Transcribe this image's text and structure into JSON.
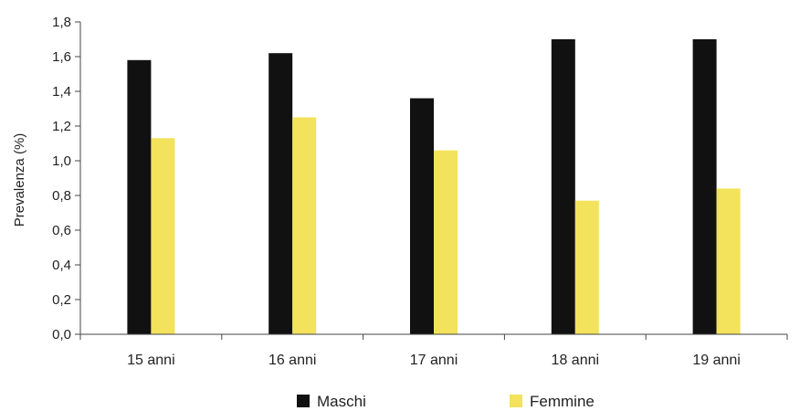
{
  "chart_data": {
    "type": "bar",
    "title": "",
    "xlabel": "",
    "ylabel": "Prevalenza (%)",
    "ylim": [
      0,
      1.8
    ],
    "yticks": [
      "0,0",
      "0,2",
      "0,4",
      "0,6",
      "0,8",
      "1,0",
      "1,2",
      "1,4",
      "1,6",
      "1,8"
    ],
    "categories": [
      "15 anni",
      "16 anni",
      "17 anni",
      "18 anni",
      "19 anni"
    ],
    "series": [
      {
        "name": "Maschi",
        "color": "#111111",
        "values": [
          1.58,
          1.62,
          1.36,
          1.7,
          1.7
        ]
      },
      {
        "name": "Femmine",
        "color": "#f3e25c",
        "values": [
          1.13,
          1.25,
          1.06,
          0.77,
          0.84
        ]
      }
    ],
    "grid": false,
    "legend_position": "bottom"
  }
}
